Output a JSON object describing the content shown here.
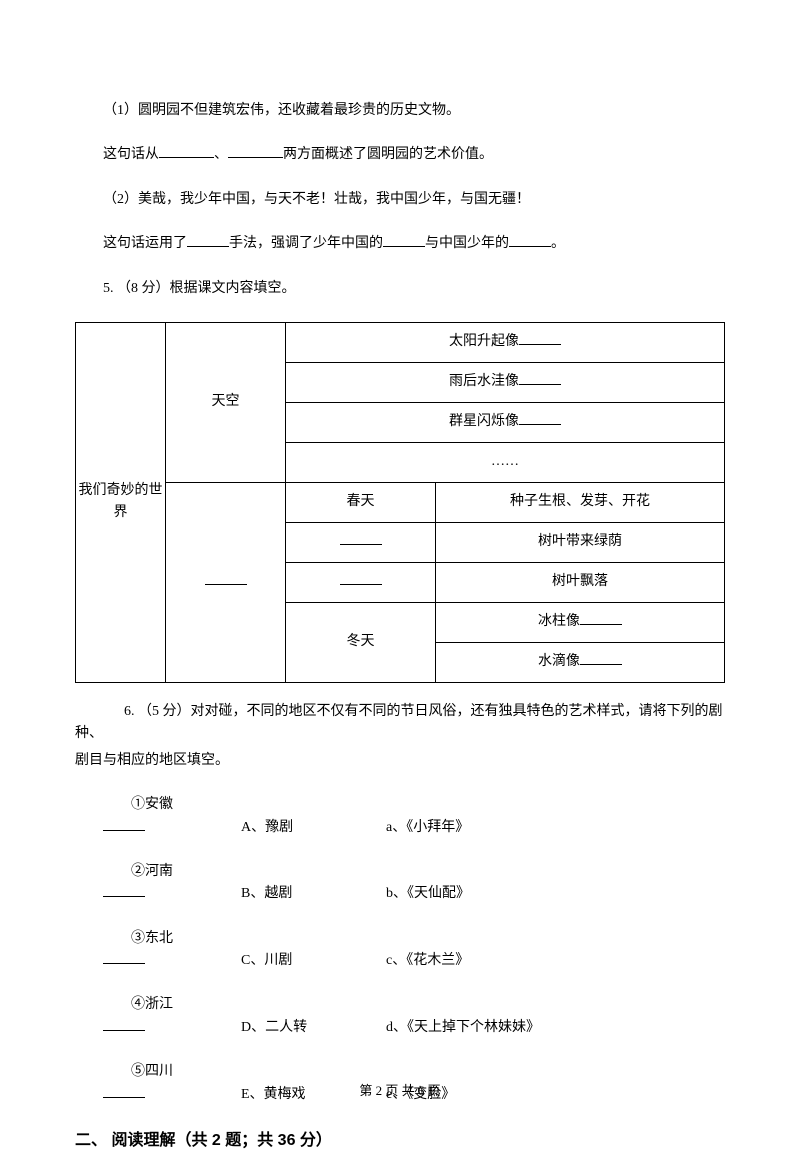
{
  "q1": {
    "line1": "（1）圆明园不但建筑宏伟，还收藏着最珍贵的历史文物。",
    "line2_a": "这句话从",
    "line2_b": "、",
    "line2_c": "两方面概述了圆明园的艺术价值。"
  },
  "q2": {
    "line1": "（2）美哉，我少年中国，与天不老！壮哉，我中国少年，与国无疆！",
    "line2_a": "这句话运用了",
    "line2_b": "手法，强调了少年中国的",
    "line2_c": "与中国少年的",
    "line2_d": "。"
  },
  "q5": {
    "stem": "5.  （8 分）根据课文内容填空。",
    "col0": "我们奇妙的世界",
    "sky": "天空",
    "r1": "太阳升起像",
    "r2": "雨后水洼像",
    "r3": "群星闪烁像",
    "r4": "……",
    "spring": "春天",
    "spring_v": "种子生根、发芽、开花",
    "r5_v": "树叶带来绿荫",
    "r6_v": "树叶飘落",
    "winter": "冬天",
    "r7": "冰柱像",
    "r8": "水滴像"
  },
  "q6": {
    "stem_a": "6.  （5 分）对对碰，不同的地区不仅有不同的节日风俗，还有独具特色的艺术样式，请将下列的剧种、",
    "stem_b": "剧目与相应的地区填空。",
    "rows": [
      {
        "id": "①安徽",
        "opt": "A、豫剧",
        "ans": "a、《小拜年》"
      },
      {
        "id": "②河南",
        "opt": "B、越剧",
        "ans": "b、《天仙配》"
      },
      {
        "id": "③东北",
        "opt": "C、川剧",
        "ans": "c、《花木兰》"
      },
      {
        "id": "④浙江",
        "opt": "D、二人转",
        "ans": "d、《天上掉下个林妹妹》"
      },
      {
        "id": "⑤四川",
        "opt": "E、黄梅戏",
        "ans": "e、《变脸》"
      }
    ]
  },
  "section2": "二、 阅读理解（共 2 题；共 36 分）",
  "footer": "第 2 页 共 6 页"
}
